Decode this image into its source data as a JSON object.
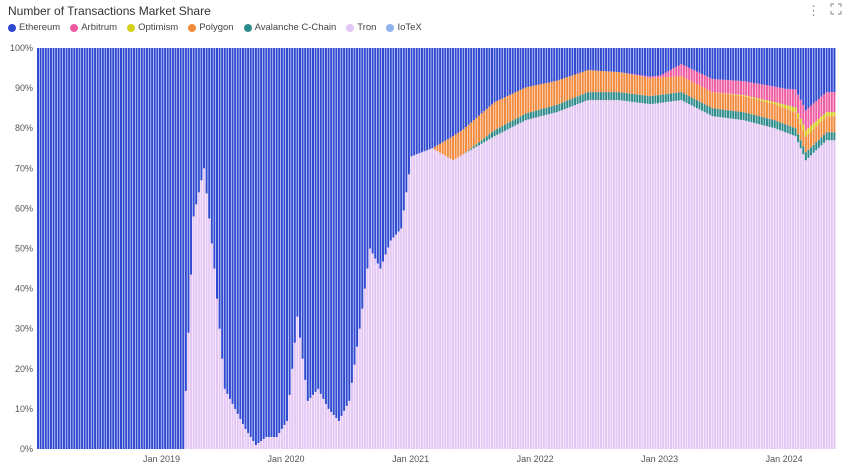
{
  "title": "Number of Transactions Market Share",
  "icons": {
    "menu": "more-vertical-icon",
    "expand": "expand-icon"
  },
  "legend": [
    {
      "name": "Ethereum",
      "color": "#2f49d1"
    },
    {
      "name": "Arbitrum",
      "color": "#ef5ba1"
    },
    {
      "name": "Optimism",
      "color": "#d4cf1a"
    },
    {
      "name": "Polygon",
      "color": "#f28a3c"
    },
    {
      "name": "Avalanche C-Chain",
      "color": "#2e8b8b"
    },
    {
      "name": "Tron",
      "color": "#e3c6f3"
    },
    {
      "name": "IoTeX",
      "color": "#8fb2ef"
    }
  ],
  "chart_data": {
    "type": "area",
    "stacked": "percent",
    "title": "Number of Transactions Market Share",
    "y_ticks": [
      "0%",
      "10%",
      "20%",
      "30%",
      "40%",
      "50%",
      "60%",
      "70%",
      "80%",
      "90%",
      "100%"
    ],
    "ylim": [
      0,
      100
    ],
    "x_ticks": [
      "Jan 2019",
      "Jan 2020",
      "Jan 2021",
      "Jan 2022",
      "Jan 2023",
      "Jan 2024"
    ],
    "x_range": [
      "2018-01",
      "2024-05"
    ],
    "legend_position": "top-left",
    "grid": false,
    "series": [
      {
        "name": "Tron",
        "color": "#e3c6f3",
        "points": [
          [
            "2018-01",
            0
          ],
          [
            "2019-03",
            0
          ],
          [
            "2019-04",
            58
          ],
          [
            "2019-05",
            70
          ],
          [
            "2019-06",
            45
          ],
          [
            "2019-07",
            15
          ],
          [
            "2019-08",
            10
          ],
          [
            "2019-09",
            5
          ],
          [
            "2019-10",
            1
          ],
          [
            "2019-11",
            3
          ],
          [
            "2019-12",
            3
          ],
          [
            "2020-01",
            7
          ],
          [
            "2020-02",
            33
          ],
          [
            "2020-03",
            12
          ],
          [
            "2020-04",
            15
          ],
          [
            "2020-05",
            10
          ],
          [
            "2020-06",
            7
          ],
          [
            "2020-07",
            12
          ],
          [
            "2020-08",
            30
          ],
          [
            "2020-09",
            50
          ],
          [
            "2020-10",
            45
          ],
          [
            "2020-11",
            52
          ],
          [
            "2020-12",
            55
          ],
          [
            "2021-01",
            73
          ],
          [
            "2021-03",
            75
          ],
          [
            "2021-05",
            72
          ],
          [
            "2021-07",
            75
          ],
          [
            "2021-09",
            78
          ],
          [
            "2021-12",
            82
          ],
          [
            "2022-03",
            84
          ],
          [
            "2022-06",
            87
          ],
          [
            "2022-09",
            87
          ],
          [
            "2022-12",
            86
          ],
          [
            "2023-03",
            87
          ],
          [
            "2023-06",
            83
          ],
          [
            "2023-09",
            82
          ],
          [
            "2023-12",
            80
          ],
          [
            "2024-02",
            78
          ],
          [
            "2024-03",
            72
          ],
          [
            "2024-05",
            77
          ]
        ]
      },
      {
        "name": "Avalanche C-Chain",
        "color": "#2e8b8b",
        "points": [
          [
            "2018-01",
            0
          ],
          [
            "2021-06",
            0
          ],
          [
            "2021-09",
            1.5
          ],
          [
            "2022-06",
            2
          ],
          [
            "2023-06",
            2
          ],
          [
            "2024-05",
            2
          ]
        ]
      },
      {
        "name": "Polygon",
        "color": "#f28a3c",
        "points": [
          [
            "2018-01",
            0
          ],
          [
            "2021-03",
            0
          ],
          [
            "2021-05",
            6
          ],
          [
            "2021-09",
            7
          ],
          [
            "2022-03",
            6
          ],
          [
            "2022-09",
            5
          ],
          [
            "2023-03",
            4
          ],
          [
            "2023-09",
            4
          ],
          [
            "2024-03",
            4
          ],
          [
            "2024-05",
            4
          ]
        ]
      },
      {
        "name": "Optimism",
        "color": "#d4cf1a",
        "points": [
          [
            "2018-01",
            0
          ],
          [
            "2023-06",
            0
          ],
          [
            "2023-12",
            0.5
          ],
          [
            "2024-03",
            1.5
          ],
          [
            "2024-05",
            1
          ]
        ]
      },
      {
        "name": "Arbitrum",
        "color": "#ef5ba1",
        "points": [
          [
            "2018-01",
            0
          ],
          [
            "2022-09",
            0
          ],
          [
            "2023-01",
            0.5
          ],
          [
            "2023-03",
            3
          ],
          [
            "2023-09",
            3.5
          ],
          [
            "2024-01",
            4
          ],
          [
            "2024-03",
            5
          ],
          [
            "2024-05",
            5
          ]
        ]
      },
      {
        "name": "Ethereum",
        "color": "#2f49d1",
        "points": [
          [
            "2018-01",
            100
          ],
          [
            "2024-05",
            100
          ]
        ]
      }
    ]
  }
}
